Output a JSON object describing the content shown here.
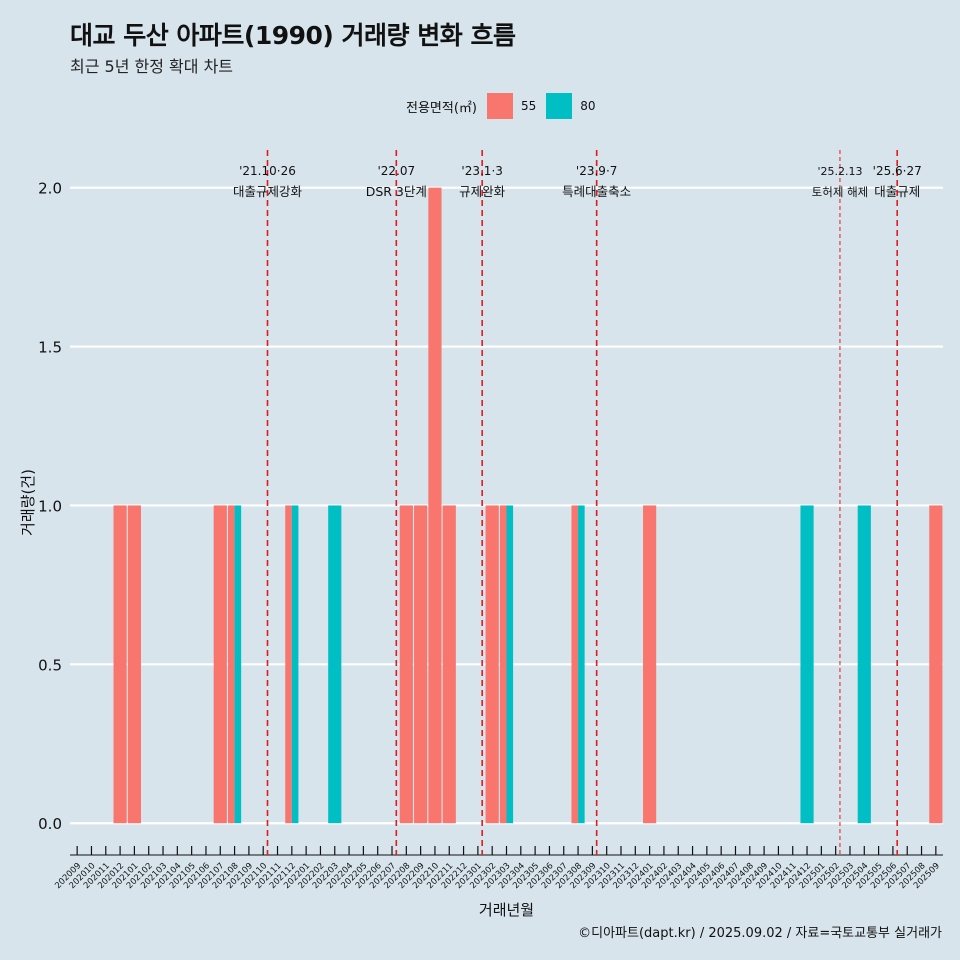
{
  "title": "대교 두산 아파트(1990) 거래량 변화 흐름",
  "subtitle": "최근 5년 한정 확대 차트",
  "legend": {
    "title": "전용면적(㎡)",
    "items": [
      {
        "label": "55",
        "color": "#F8766D"
      },
      {
        "label": "80",
        "color": "#00BFC4"
      }
    ]
  },
  "caption": "©디아파트(dapt.kr) / 2025.09.02 / 자료=국토교통부 실거래가",
  "chart_data": {
    "type": "bar",
    "xlabel": "거래년월",
    "ylabel": "거래량(건)",
    "ylim": [
      -0.1,
      2.15
    ],
    "yticks": [
      0.0,
      0.5,
      1.0,
      1.5,
      2.0
    ],
    "ytick_labels": [
      "0.0",
      "0.5",
      "1.0",
      "1.5",
      "2.0"
    ],
    "grid": true,
    "categories": [
      "202009",
      "202010",
      "202011",
      "202012",
      "202101",
      "202102",
      "202103",
      "202104",
      "202105",
      "202106",
      "202107",
      "202108",
      "202109",
      "202110",
      "202111",
      "202112",
      "202201",
      "202202",
      "202203",
      "202204",
      "202205",
      "202206",
      "202207",
      "202208",
      "202209",
      "202210",
      "202211",
      "202212",
      "202301",
      "202302",
      "202303",
      "202304",
      "202305",
      "202306",
      "202307",
      "202308",
      "202309",
      "202310",
      "202311",
      "202312",
      "202401",
      "202402",
      "202403",
      "202404",
      "202405",
      "202406",
      "202407",
      "202408",
      "202409",
      "202410",
      "202411",
      "202412",
      "202501",
      "202502",
      "202503",
      "202504",
      "202505",
      "202506",
      "202507",
      "202508",
      "202509"
    ],
    "series": [
      {
        "name": "55",
        "color": "#F8766D",
        "values": [
          0,
          0,
          0,
          1,
          1,
          0,
          0,
          0,
          0,
          0,
          1,
          1,
          0,
          0,
          0,
          1,
          0,
          0,
          0,
          0,
          0,
          0,
          0,
          1,
          1,
          2,
          1,
          0,
          0,
          1,
          1,
          0,
          0,
          0,
          0,
          1,
          0,
          0,
          0,
          0,
          1,
          0,
          0,
          0,
          0,
          0,
          0,
          0,
          0,
          0,
          0,
          0,
          0,
          0,
          0,
          0,
          0,
          0,
          0,
          0,
          1
        ]
      },
      {
        "name": "80",
        "color": "#00BFC4",
        "values": [
          0,
          0,
          0,
          0,
          0,
          0,
          0,
          0,
          0,
          0,
          0,
          1,
          0,
          0,
          0,
          1,
          0,
          0,
          1,
          0,
          0,
          0,
          0,
          0,
          0,
          0,
          0,
          0,
          0,
          0,
          1,
          0,
          0,
          0,
          0,
          1,
          0,
          0,
          0,
          0,
          0,
          0,
          0,
          0,
          0,
          0,
          0,
          0,
          0,
          0,
          0,
          1,
          0,
          0,
          0,
          1,
          0,
          0,
          0,
          0,
          0
        ]
      }
    ],
    "annotations": [
      {
        "date": "'21.10·26",
        "label": "대출규제강화",
        "x": 13.3,
        "style": "thick"
      },
      {
        "date": "'22.07",
        "label": "DSR 3단계",
        "x": 22.3,
        "style": "thick"
      },
      {
        "date": "'23.1·3",
        "label": "규제완화",
        "x": 28.3,
        "style": "thick"
      },
      {
        "date": "'23.9·7",
        "label": "특례대출축소",
        "x": 36.3,
        "style": "thick"
      },
      {
        "date": "'25.2.13",
        "label": "토허제 해제",
        "x": 53.3,
        "style": "thin"
      },
      {
        "date": "'25.6·27",
        "label": "대출규제",
        "x": 57.3,
        "style": "thick"
      }
    ]
  }
}
